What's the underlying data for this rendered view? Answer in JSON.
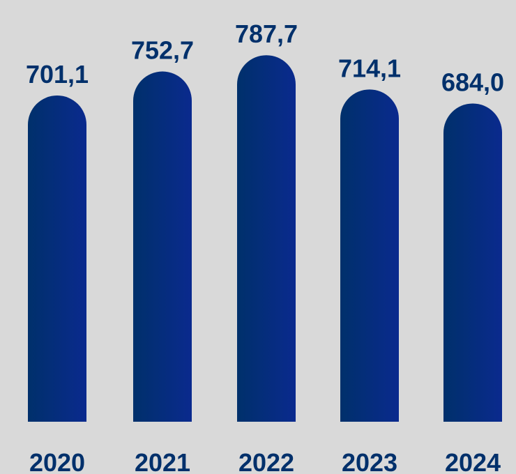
{
  "chart_data": {
    "type": "bar",
    "categories": [
      "2020",
      "2021",
      "2022",
      "2023",
      "2024"
    ],
    "values": [
      701.1,
      752.7,
      787.7,
      714.1,
      684.0
    ],
    "value_labels": [
      "701,1",
      "752,7",
      "787,7",
      "714,1",
      "684,0"
    ],
    "title": "",
    "xlabel": "",
    "ylabel": "",
    "grid": false,
    "legend": "none"
  },
  "colors": {
    "background": "#d9d9d9",
    "bar_top": "#00306b",
    "bar_bottom": "#0a2a8e",
    "label": "#00306b"
  }
}
